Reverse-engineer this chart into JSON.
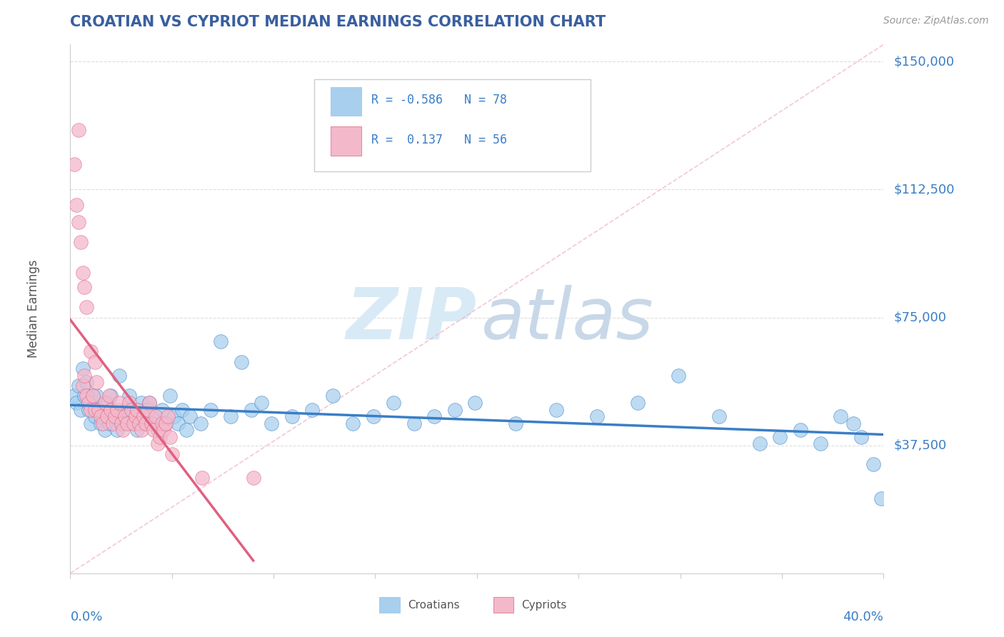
{
  "title": "CROATIAN VS CYPRIOT MEDIAN EARNINGS CORRELATION CHART",
  "source": "Source: ZipAtlas.com",
  "ylabel": "Median Earnings",
  "xmin": 0.0,
  "xmax": 0.4,
  "ymin": 0,
  "ymax": 155000,
  "ytick_vals": [
    37500,
    75000,
    112500,
    150000
  ],
  "ytick_labels": [
    "$37,500",
    "$75,000",
    "$112,500",
    "$150,000"
  ],
  "blue_color": "#A8CFEE",
  "pink_color": "#F4B8CB",
  "blue_line_color": "#3A7EC6",
  "pink_line_color": "#E06080",
  "title_color": "#3A5FA0",
  "axis_label_color": "#3A7EC6",
  "watermark_zip": "ZIP",
  "watermark_atlas": "atlas",
  "grid_color": "#DDDDDD",
  "diag_color": "#F0B8CB",
  "blue_scatter": [
    [
      0.002,
      52000
    ],
    [
      0.003,
      50000
    ],
    [
      0.004,
      55000
    ],
    [
      0.005,
      48000
    ],
    [
      0.006,
      60000
    ],
    [
      0.007,
      52000
    ],
    [
      0.008,
      56000
    ],
    [
      0.009,
      48000
    ],
    [
      0.01,
      44000
    ],
    [
      0.011,
      52000
    ],
    [
      0.012,
      46000
    ],
    [
      0.013,
      52000
    ],
    [
      0.014,
      48000
    ],
    [
      0.015,
      44000
    ],
    [
      0.016,
      46000
    ],
    [
      0.017,
      42000
    ],
    [
      0.018,
      50000
    ],
    [
      0.019,
      44000
    ],
    [
      0.02,
      52000
    ],
    [
      0.022,
      46000
    ],
    [
      0.023,
      42000
    ],
    [
      0.024,
      58000
    ],
    [
      0.025,
      46000
    ],
    [
      0.026,
      44000
    ],
    [
      0.027,
      48000
    ],
    [
      0.029,
      52000
    ],
    [
      0.031,
      46000
    ],
    [
      0.032,
      44000
    ],
    [
      0.033,
      42000
    ],
    [
      0.034,
      48000
    ],
    [
      0.035,
      50000
    ],
    [
      0.036,
      46000
    ],
    [
      0.037,
      44000
    ],
    [
      0.039,
      50000
    ],
    [
      0.041,
      44000
    ],
    [
      0.042,
      46000
    ],
    [
      0.043,
      42000
    ],
    [
      0.045,
      48000
    ],
    [
      0.047,
      44000
    ],
    [
      0.049,
      52000
    ],
    [
      0.051,
      46000
    ],
    [
      0.053,
      44000
    ],
    [
      0.055,
      48000
    ],
    [
      0.057,
      42000
    ],
    [
      0.059,
      46000
    ],
    [
      0.064,
      44000
    ],
    [
      0.069,
      48000
    ],
    [
      0.074,
      68000
    ],
    [
      0.079,
      46000
    ],
    [
      0.084,
      62000
    ],
    [
      0.089,
      48000
    ],
    [
      0.094,
      50000
    ],
    [
      0.099,
      44000
    ],
    [
      0.109,
      46000
    ],
    [
      0.119,
      48000
    ],
    [
      0.129,
      52000
    ],
    [
      0.139,
      44000
    ],
    [
      0.149,
      46000
    ],
    [
      0.159,
      50000
    ],
    [
      0.169,
      44000
    ],
    [
      0.179,
      46000
    ],
    [
      0.189,
      48000
    ],
    [
      0.199,
      50000
    ],
    [
      0.219,
      44000
    ],
    [
      0.239,
      48000
    ],
    [
      0.259,
      46000
    ],
    [
      0.279,
      50000
    ],
    [
      0.299,
      58000
    ],
    [
      0.319,
      46000
    ],
    [
      0.339,
      38000
    ],
    [
      0.349,
      40000
    ],
    [
      0.359,
      42000
    ],
    [
      0.369,
      38000
    ],
    [
      0.379,
      46000
    ],
    [
      0.389,
      40000
    ],
    [
      0.395,
      32000
    ],
    [
      0.399,
      22000
    ],
    [
      0.385,
      44000
    ]
  ],
  "pink_scatter": [
    [
      0.002,
      120000
    ],
    [
      0.003,
      108000
    ],
    [
      0.004,
      103000
    ],
    [
      0.005,
      97000
    ],
    [
      0.006,
      88000
    ],
    [
      0.007,
      84000
    ],
    [
      0.008,
      78000
    ],
    [
      0.01,
      65000
    ],
    [
      0.012,
      62000
    ],
    [
      0.004,
      130000
    ],
    [
      0.006,
      55000
    ],
    [
      0.007,
      58000
    ],
    [
      0.008,
      52000
    ],
    [
      0.009,
      50000
    ],
    [
      0.01,
      48000
    ],
    [
      0.011,
      52000
    ],
    [
      0.012,
      48000
    ],
    [
      0.013,
      56000
    ],
    [
      0.014,
      48000
    ],
    [
      0.015,
      46000
    ],
    [
      0.016,
      44000
    ],
    [
      0.017,
      50000
    ],
    [
      0.018,
      46000
    ],
    [
      0.019,
      52000
    ],
    [
      0.02,
      48000
    ],
    [
      0.021,
      44000
    ],
    [
      0.022,
      46000
    ],
    [
      0.023,
      48000
    ],
    [
      0.024,
      50000
    ],
    [
      0.025,
      44000
    ],
    [
      0.026,
      42000
    ],
    [
      0.027,
      46000
    ],
    [
      0.028,
      44000
    ],
    [
      0.029,
      50000
    ],
    [
      0.03,
      48000
    ],
    [
      0.031,
      44000
    ],
    [
      0.032,
      46000
    ],
    [
      0.033,
      48000
    ],
    [
      0.034,
      44000
    ],
    [
      0.035,
      42000
    ],
    [
      0.036,
      46000
    ],
    [
      0.037,
      44000
    ],
    [
      0.038,
      48000
    ],
    [
      0.039,
      50000
    ],
    [
      0.04,
      44000
    ],
    [
      0.041,
      42000
    ],
    [
      0.042,
      46000
    ],
    [
      0.043,
      38000
    ],
    [
      0.044,
      40000
    ],
    [
      0.045,
      44000
    ],
    [
      0.046,
      42000
    ],
    [
      0.047,
      44000
    ],
    [
      0.048,
      46000
    ],
    [
      0.049,
      40000
    ],
    [
      0.05,
      35000
    ],
    [
      0.065,
      28000
    ],
    [
      0.09,
      28000
    ]
  ]
}
